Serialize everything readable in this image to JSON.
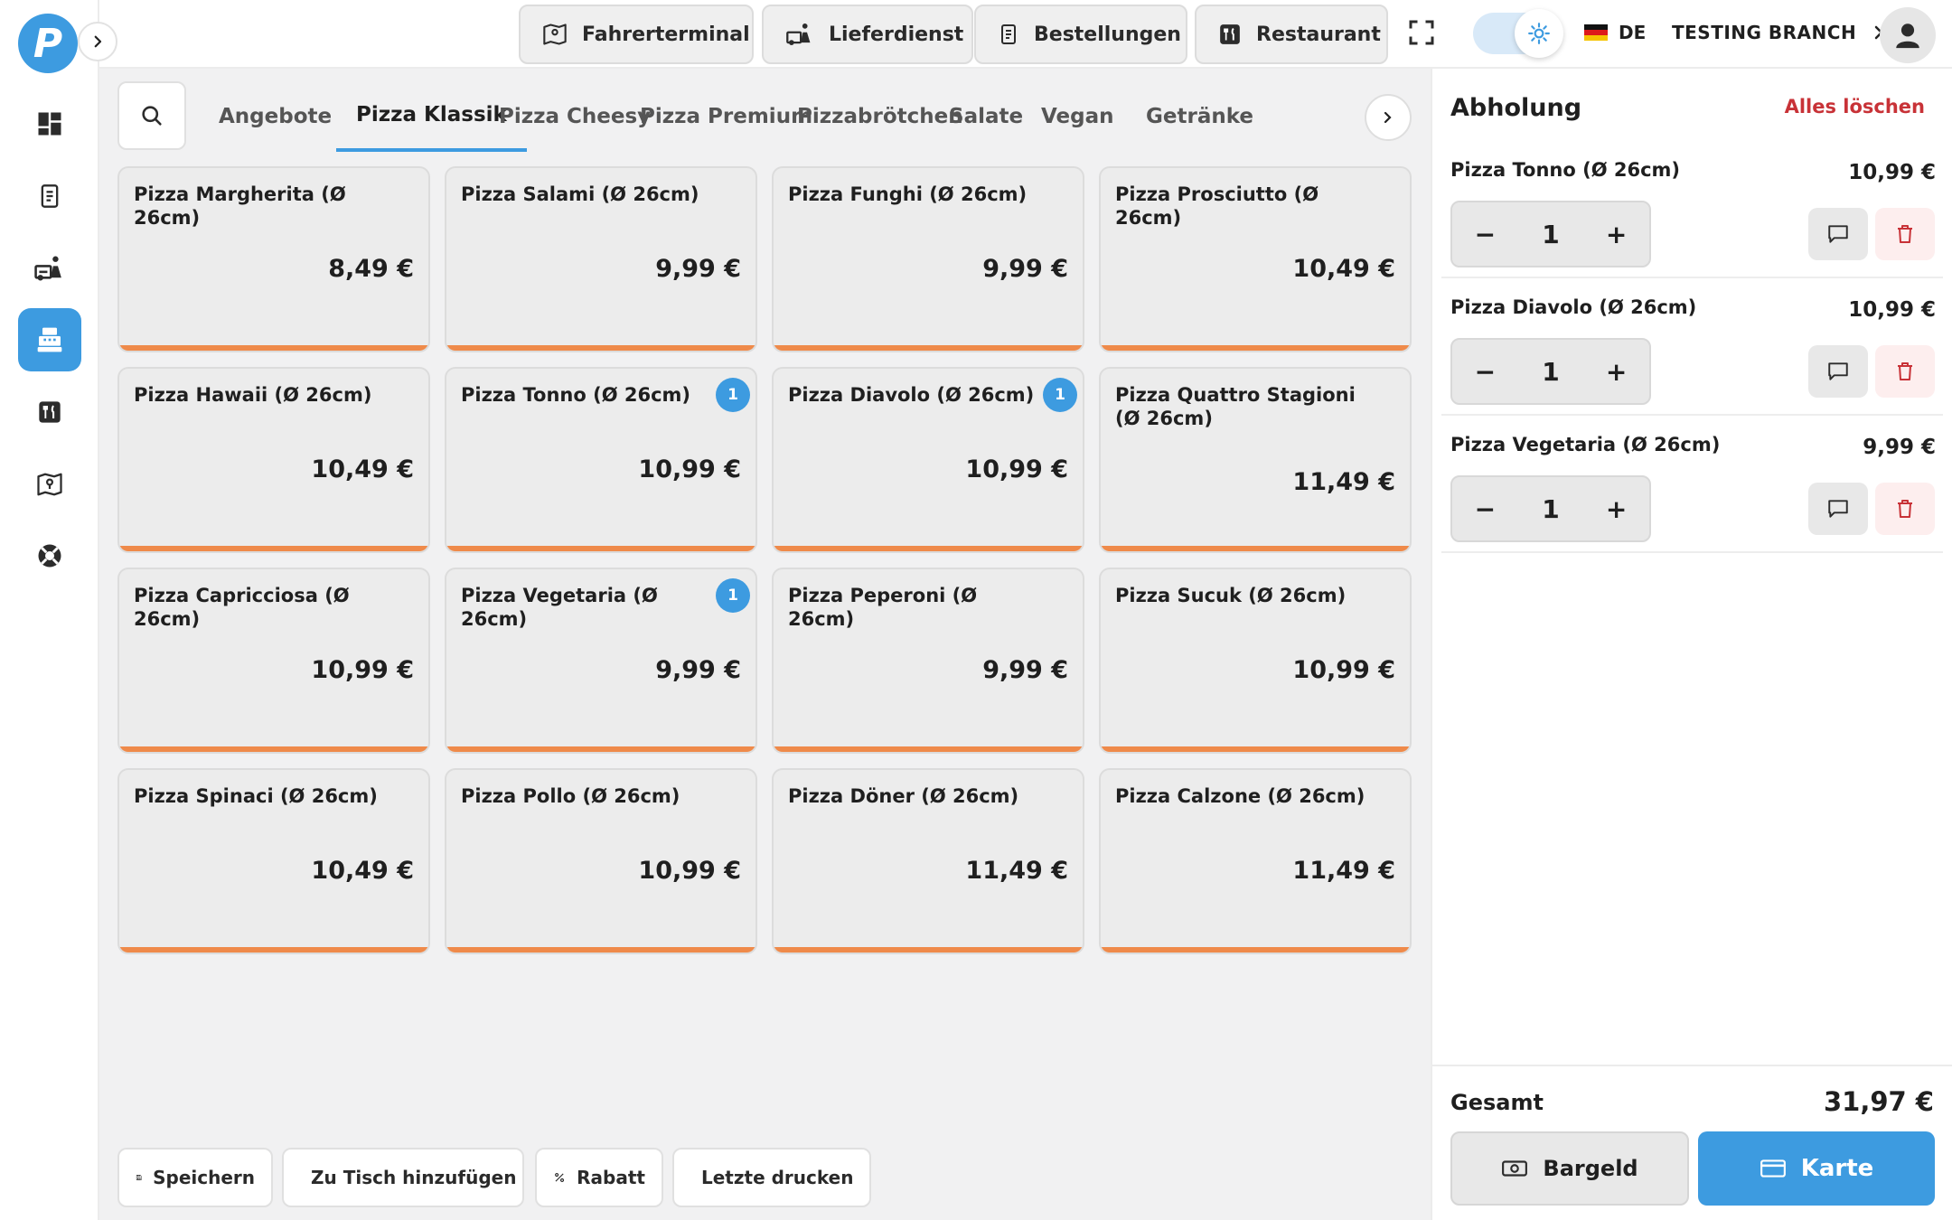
{
  "app": {
    "logo_letter": "P",
    "accent_color": "#3d9be0",
    "card_stripe_color": "#ef8a4a",
    "danger_color": "#c83237"
  },
  "sidebar": {
    "items": [
      {
        "name": "dashboard",
        "icon": "dashboard-icon"
      },
      {
        "name": "orders",
        "icon": "receipt-icon"
      },
      {
        "name": "delivery",
        "icon": "delivery-truck-icon"
      },
      {
        "name": "pos",
        "icon": "cash-register-icon",
        "active": true
      },
      {
        "name": "restaurant",
        "icon": "fork-knife-icon"
      },
      {
        "name": "driver-map",
        "icon": "map-icon"
      },
      {
        "name": "support",
        "icon": "lifebuoy-icon"
      }
    ]
  },
  "header": {
    "buttons": [
      {
        "label": "Fahrerterminal",
        "icon": "map-icon"
      },
      {
        "label": "Lieferdienst",
        "icon": "delivery-truck-icon"
      },
      {
        "label": "Bestellungen",
        "icon": "receipt-icon"
      },
      {
        "label": "Restaurant",
        "icon": "fork-knife-icon"
      }
    ],
    "language": "DE",
    "branch": "TESTING BRANCH"
  },
  "categories": {
    "active_index": 1,
    "tabs": [
      "Angebote",
      "Pizza Klassik",
      "Pizza Cheesy",
      "Pizza Premium",
      "Pizzabrötchen",
      "Salate",
      "Vegan",
      "Getränke"
    ]
  },
  "products": [
    {
      "name": "Pizza Margherita (Ø 26cm)",
      "price": "8,49 €",
      "badge": ""
    },
    {
      "name": "Pizza Salami (Ø 26cm)",
      "price": "9,99 €",
      "badge": ""
    },
    {
      "name": "Pizza Funghi (Ø 26cm)",
      "price": "9,99 €",
      "badge": ""
    },
    {
      "name": "Pizza Prosciutto (Ø 26cm)",
      "price": "10,49 €",
      "badge": ""
    },
    {
      "name": "Pizza Hawaii (Ø 26cm)",
      "price": "10,49 €",
      "badge": ""
    },
    {
      "name": "Pizza Tonno (Ø 26cm)",
      "price": "10,99 €",
      "badge": "1"
    },
    {
      "name": "Pizza Diavolo (Ø 26cm)",
      "price": "10,99 €",
      "badge": "1"
    },
    {
      "name": "Pizza Quattro Stagioni (Ø 26cm)",
      "price": "11,49 €",
      "badge": ""
    },
    {
      "name": "Pizza Capricciosa (Ø 26cm)",
      "price": "10,99 €",
      "badge": ""
    },
    {
      "name": "Pizza Vegetaria (Ø 26cm)",
      "price": "9,99 €",
      "badge": "1"
    },
    {
      "name": "Pizza Peperoni (Ø 26cm)",
      "price": "9,99 €",
      "badge": ""
    },
    {
      "name": "Pizza Sucuk (Ø 26cm)",
      "price": "10,99 €",
      "badge": ""
    },
    {
      "name": "Pizza Spinaci (Ø 26cm)",
      "price": "10,49 €",
      "badge": ""
    },
    {
      "name": "Pizza Pollo (Ø 26cm)",
      "price": "10,99 €",
      "badge": ""
    },
    {
      "name": "Pizza Döner (Ø 26cm)",
      "price": "11,49 €",
      "badge": ""
    },
    {
      "name": "Pizza Calzone (Ø 26cm)",
      "price": "11,49 €",
      "badge": ""
    }
  ],
  "actions": {
    "save": "Speichern",
    "add_to_table": "Zu Tisch hinzufügen",
    "discount": "Rabatt",
    "print_last": "Letzte drucken"
  },
  "order": {
    "title": "Abholung",
    "clear_all": "Alles löschen",
    "items": [
      {
        "name": "Pizza Tonno (Ø 26cm)",
        "price": "10,99 €",
        "qty": "1"
      },
      {
        "name": "Pizza Diavolo (Ø 26cm)",
        "price": "10,99 €",
        "qty": "1"
      },
      {
        "name": "Pizza Vegetaria (Ø 26cm)",
        "price": "9,99 €",
        "qty": "1"
      }
    ],
    "total_label": "Gesamt",
    "total_value": "31,97 €",
    "pay_cash": "Bargeld",
    "pay_card": "Karte"
  }
}
